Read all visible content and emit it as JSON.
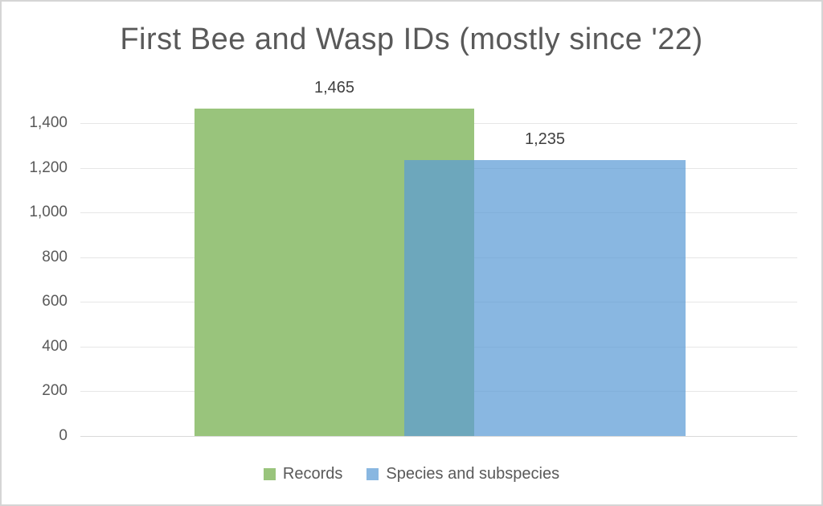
{
  "chart_data": {
    "type": "bar",
    "title": "First Bee and Wasp IDs (mostly since '22)",
    "categories": [
      ""
    ],
    "series": [
      {
        "id": "records",
        "name": "Records",
        "values": [
          1465
        ],
        "data_label": "1,465",
        "color": "#99C47C",
        "opacity": 1
      },
      {
        "id": "species-and-subspecies",
        "name": "Species and subspecies",
        "values": [
          1235
        ],
        "data_label": "1,235",
        "color": "#5B9BD5",
        "opacity": 0.72
      }
    ],
    "xlabel": "",
    "ylabel": "",
    "ylim": [
      0,
      1500
    ],
    "yticks": [
      0,
      200,
      400,
      600,
      800,
      1000,
      1200,
      1400
    ],
    "ytick_labels": [
      "0",
      "200",
      "400",
      "600",
      "800",
      "1,000",
      "1,200",
      "1,400"
    ],
    "grid": true,
    "legend_position": "bottom"
  },
  "colors": {
    "title_text": "#595959",
    "axis_text": "#595959",
    "data_label_text": "#3F3F3F",
    "legend_text": "#595959",
    "gridline": "#E6E6E6",
    "axis_line": "#D9D9D9",
    "chart_border": "#D5D5D5",
    "background": "#FFFFFF"
  }
}
